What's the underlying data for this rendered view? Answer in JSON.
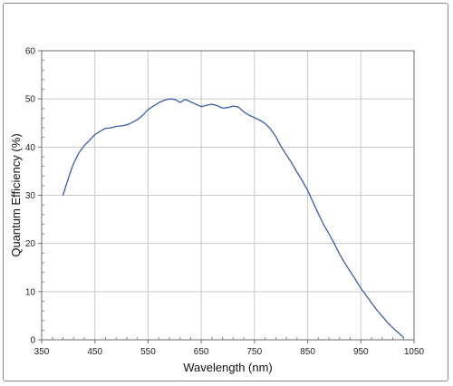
{
  "chart_data": {
    "type": "line",
    "title": "",
    "xlabel": "Wavelength (nm)",
    "ylabel": "Quantum Efficiency (%)",
    "xlim": [
      350,
      1050
    ],
    "ylim": [
      0,
      60
    ],
    "x_ticks": [
      350,
      450,
      550,
      650,
      750,
      850,
      950,
      1050
    ],
    "y_ticks": [
      0,
      10,
      20,
      30,
      40,
      50,
      60
    ],
    "x_tick_labels": [
      "350",
      "450",
      "550",
      "650",
      "750",
      "850",
      "950",
      "1050"
    ],
    "y_tick_labels": [
      "0",
      "10",
      "20",
      "30",
      "40",
      "50",
      "60"
    ],
    "x_minor_step": 20,
    "y_minor_step": 2,
    "grid": true,
    "legend": "none",
    "line_color": "#3a5ea6",
    "grid_color": "#c8c8c8",
    "series": [
      {
        "x": [
          390,
          400,
          410,
          420,
          430,
          440,
          450,
          460,
          470,
          480,
          490,
          500,
          510,
          520,
          530,
          540,
          550,
          560,
          570,
          580,
          590,
          600,
          610,
          620,
          630,
          640,
          650,
          660,
          670,
          680,
          690,
          700,
          710,
          720,
          730,
          740,
          750,
          760,
          770,
          780,
          790,
          800,
          810,
          820,
          830,
          840,
          850,
          860,
          870,
          880,
          890,
          900,
          910,
          920,
          930,
          940,
          950,
          960,
          970,
          980,
          990,
          1000,
          1010,
          1020,
          1030
        ],
        "values": [
          30.0,
          33.5,
          36.6,
          38.8,
          40.3,
          41.4,
          42.6,
          43.3,
          43.9,
          44.0,
          44.3,
          44.4,
          44.6,
          45.1,
          45.7,
          46.6,
          47.8,
          48.5,
          49.2,
          49.7,
          50.0,
          49.9,
          49.3,
          49.9,
          49.4,
          48.9,
          48.4,
          48.7,
          48.9,
          48.6,
          48.1,
          48.2,
          48.5,
          48.3,
          47.3,
          46.6,
          46.1,
          45.6,
          44.9,
          43.8,
          42.2,
          40.1,
          38.4,
          36.7,
          34.8,
          33.0,
          31.0,
          28.6,
          26.2,
          23.9,
          22.0,
          20.0,
          17.8,
          15.9,
          14.2,
          12.5,
          10.7,
          9.2,
          7.7,
          6.2,
          4.9,
          3.6,
          2.5,
          1.5,
          0.5
        ]
      }
    ]
  }
}
